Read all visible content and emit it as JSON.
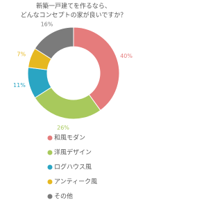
{
  "chart_data": {
    "type": "donut",
    "title": [
      "新築一戸建てを作るなら、",
      "どんなコンセプトの家が良いですか？"
    ],
    "categories": [
      "和風モダン",
      "洋風デザイン",
      "ログハウス風",
      "アンティーク風",
      "その他"
    ],
    "values": [
      40,
      26,
      11,
      7,
      16
    ],
    "value_labels": [
      "40%",
      "26%",
      "11%",
      "7%",
      "16%"
    ],
    "colors": [
      "#e57c7c",
      "#a8c95c",
      "#2aa5c3",
      "#e6b820",
      "#7b7b7b"
    ]
  }
}
